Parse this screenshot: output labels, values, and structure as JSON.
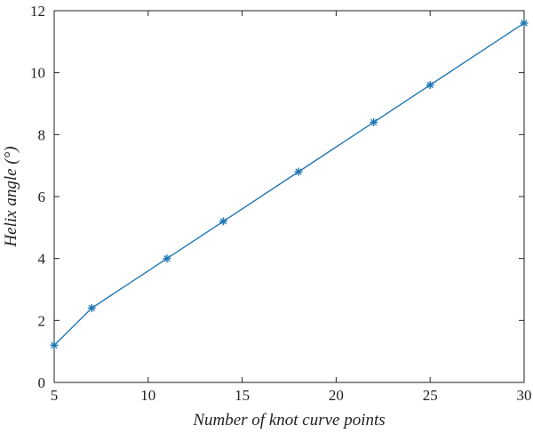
{
  "chart_data": {
    "type": "line",
    "xlabel": "Number of knot curve points",
    "ylabel": "Helix angle (°)",
    "xlim": [
      5,
      30
    ],
    "ylim": [
      0,
      12
    ],
    "x_ticks": [
      5,
      10,
      15,
      20,
      25,
      30
    ],
    "y_ticks": [
      0,
      2,
      4,
      6,
      8,
      10,
      12
    ],
    "grid": false,
    "marker": "asterisk",
    "series": [
      {
        "x": [
          5,
          7,
          11,
          14,
          18,
          22,
          25,
          30
        ],
        "values": [
          1.2,
          2.4,
          4.0,
          5.2,
          6.8,
          8.4,
          9.6,
          11.6
        ],
        "color": "#1f77b4"
      }
    ]
  }
}
